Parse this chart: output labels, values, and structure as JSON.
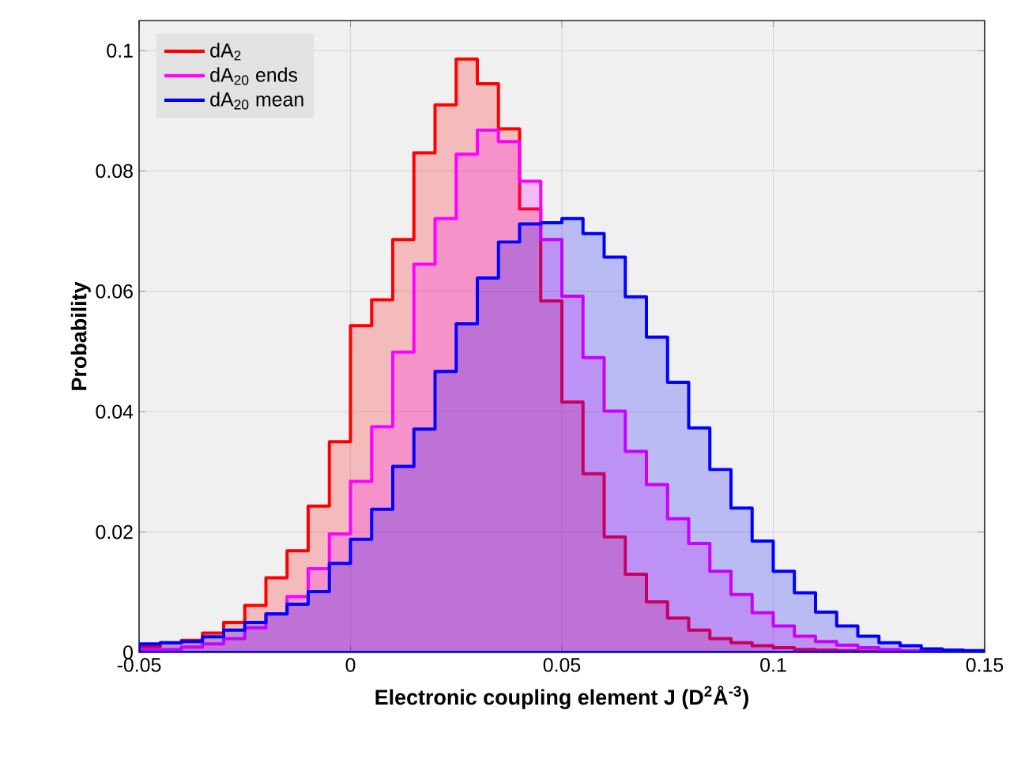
{
  "chart_data": {
    "type": "histogram",
    "xlabel": "Electronic coupling element J (D$^{2}$Å$^{-3}$)",
    "ylabel": "Probability",
    "bins": [
      -0.05,
      -0.045,
      -0.04,
      -0.035,
      -0.03,
      -0.025,
      -0.02,
      -0.015,
      -0.01,
      -0.005,
      0,
      0.005,
      0.01,
      0.015,
      0.02,
      0.025,
      0.03,
      0.035,
      0.04,
      0.045,
      0.05,
      0.055,
      0.06,
      0.065,
      0.07,
      0.075,
      0.08,
      0.085,
      0.09,
      0.095,
      0.1,
      0.105,
      0.11,
      0.115,
      0.12,
      0.125,
      0.13,
      0.135,
      0.14,
      0.145,
      0.15
    ],
    "series": [
      {
        "name": "dA$_{2}$",
        "color": "#ff0000",
        "values": [
          0.001,
          0.0016,
          0.002,
          0.0032,
          0.005,
          0.0078,
          0.0124,
          0.0169,
          0.0243,
          0.035,
          0.0543,
          0.0586,
          0.0686,
          0.083,
          0.091,
          0.0986,
          0.0945,
          0.087,
          0.0737,
          0.0584,
          0.0416,
          0.0297,
          0.0192,
          0.013,
          0.0084,
          0.0057,
          0.0037,
          0.0023,
          0.0016,
          0.0011,
          0.0008,
          0.0005,
          0.0004,
          0.0003,
          0.0002,
          0.0001,
          0.0001,
          0.0001,
          0,
          0
        ]
      },
      {
        "name": "dA$_{20}$ ends",
        "color": "#ff00ff",
        "values": [
          0.0005,
          0.0005,
          0.0009,
          0.0014,
          0.0023,
          0.0041,
          0.0064,
          0.0093,
          0.0139,
          0.0197,
          0.0284,
          0.0375,
          0.0499,
          0.0645,
          0.0721,
          0.0828,
          0.0868,
          0.0849,
          0.0783,
          0.0686,
          0.0592,
          0.049,
          0.0401,
          0.0334,
          0.0279,
          0.0222,
          0.0181,
          0.0135,
          0.0096,
          0.0066,
          0.0044,
          0.0027,
          0.0018,
          0.0012,
          0.0008,
          0.0005,
          0.0003,
          0.0002,
          0.0001,
          0.0001
        ]
      },
      {
        "name": "dA$_{20}$ mean",
        "color": "#0000ff",
        "values": [
          0.0014,
          0.0016,
          0.0018,
          0.0026,
          0.0037,
          0.005,
          0.0064,
          0.008,
          0.0101,
          0.0148,
          0.0188,
          0.0238,
          0.0309,
          0.0371,
          0.0467,
          0.0546,
          0.0622,
          0.0682,
          0.0712,
          0.0714,
          0.0721,
          0.0696,
          0.0657,
          0.0591,
          0.0524,
          0.0449,
          0.0373,
          0.0304,
          0.024,
          0.0185,
          0.0135,
          0.0099,
          0.0067,
          0.0044,
          0.0027,
          0.0016,
          0.0011,
          0.0006,
          0.0004,
          0.0003
        ]
      }
    ],
    "xlim": [
      -0.05,
      0.15
    ],
    "ylim": [
      0,
      0.105
    ],
    "xticks": [
      -0.05,
      0,
      0.05,
      0.1,
      0.15
    ],
    "yticks": [
      0,
      0.02,
      0.04,
      0.06,
      0.08,
      0.1
    ],
    "grid": true,
    "legend": "top left"
  }
}
